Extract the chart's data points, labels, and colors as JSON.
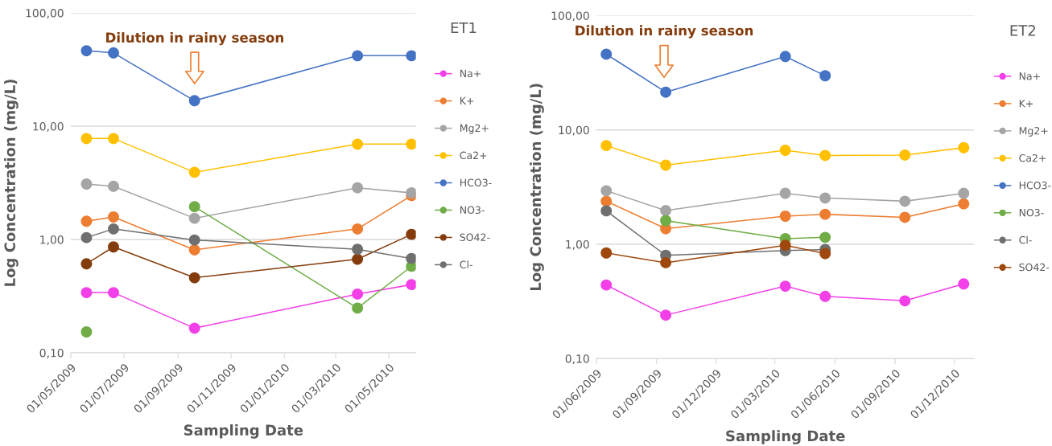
{
  "chart_data": [
    {
      "type": "line",
      "xlabel": "Sampling Date",
      "ylabel": "Log Concentration (mg/L)",
      "legend_title": "ET1",
      "legend": "right",
      "log": "y",
      "grid": "y",
      "marker": "circle",
      "line_style": "solid",
      "annotations": [
        "Dilution in rainy season"
      ],
      "x": [
        "2009-05-19",
        "2009-06-19",
        "2009-09-20",
        "2010-03-26",
        "2010-05-27"
      ],
      "xlim": [
        "2009-05-01",
        "2010-06-01"
      ],
      "xticks": [
        {
          "value": "2009-05-01",
          "label": "01/05/2009"
        },
        {
          "value": "2009-07-01",
          "label": "01/07/2009"
        },
        {
          "value": "2009-09-01",
          "label": "01/09/2009"
        },
        {
          "value": "2009-11-01",
          "label": "01/11/2009"
        },
        {
          "value": "2010-01-01",
          "label": "01/01/2010"
        },
        {
          "value": "2010-03-01",
          "label": "01/03/2010"
        },
        {
          "value": "2010-05-01",
          "label": "01/05/2010"
        }
      ],
      "ylim": [
        0.1,
        100
      ],
      "yticks": [
        {
          "value": 0.1,
          "label": "0,10"
        },
        {
          "value": 1,
          "label": "1,00"
        },
        {
          "value": 10,
          "label": "10,00"
        },
        {
          "value": 100,
          "label": "100,00"
        }
      ],
      "series": [
        {
          "name": "Na+",
          "color": "#f23fe8",
          "values": [
            0.34,
            0.34,
            0.165,
            0.33,
            0.4
          ]
        },
        {
          "name": "K+",
          "color": "#ed7d31",
          "values": [
            1.45,
            1.58,
            0.81,
            1.24,
            2.44
          ]
        },
        {
          "name": "Mg2+",
          "color": "#a5a5a5",
          "values": [
            3.09,
            2.95,
            1.54,
            2.86,
            2.58
          ]
        },
        {
          "name": "Ca2+",
          "color": "#ffc000",
          "values": [
            7.79,
            7.79,
            3.92,
            6.95,
            6.95
          ]
        },
        {
          "name": "HCO3-",
          "color": "#4472c4",
          "values": [
            46.4,
            44.4,
            16.8,
            41.9,
            41.9
          ]
        },
        {
          "name": "NO3-",
          "color": "#70ad47",
          "values": [
            0.153,
            null,
            1.95,
            0.248,
            0.58
          ]
        },
        {
          "name": "SO42-",
          "color": "#843c0c",
          "values": [
            0.61,
            0.86,
            0.46,
            0.67,
            1.11
          ]
        },
        {
          "name": "Cl-",
          "color": "#6f6f6f",
          "values": [
            1.04,
            1.24,
            0.99,
            0.82,
            0.68
          ]
        }
      ]
    },
    {
      "type": "line",
      "xlabel": "Sampling Date",
      "ylabel": "Log Concentration (mg/L)",
      "legend_title": "ET2",
      "legend": "right",
      "log": "y",
      "grid": "y",
      "marker": "circle",
      "line_style": "solid",
      "annotations": [
        "Dilution in rainy season"
      ],
      "x": [
        "2009-06-16",
        "2009-09-15",
        "2010-03-17",
        "2010-05-17",
        "2010-09-16",
        "2010-12-15"
      ],
      "xlim": [
        "2009-06-01",
        "2010-12-31"
      ],
      "xticks": [
        {
          "value": "2009-06-01",
          "label": "01/06/2009"
        },
        {
          "value": "2009-09-01",
          "label": "01/09/2009"
        },
        {
          "value": "2009-12-01",
          "label": "01/12/2009"
        },
        {
          "value": "2010-03-01",
          "label": "01/03/2010"
        },
        {
          "value": "2010-06-01",
          "label": "01/06/2010"
        },
        {
          "value": "2010-09-01",
          "label": "01/09/2010"
        },
        {
          "value": "2010-12-01",
          "label": "01/12/2010"
        }
      ],
      "ylim": [
        0.1,
        100
      ],
      "yticks": [
        {
          "value": 0.1,
          "label": "0,10"
        },
        {
          "value": 1,
          "label": "1,00"
        },
        {
          "value": 10,
          "label": "10,00"
        },
        {
          "value": 100,
          "label": "100,00"
        }
      ],
      "series": [
        {
          "name": "Na+",
          "color": "#f23fe8",
          "values": [
            0.44,
            0.24,
            0.43,
            0.35,
            0.32,
            0.45
          ]
        },
        {
          "name": "K+",
          "color": "#ed7d31",
          "values": [
            2.38,
            1.37,
            1.76,
            1.83,
            1.72,
            2.26
          ]
        },
        {
          "name": "Mg2+",
          "color": "#a5a5a5",
          "values": [
            2.94,
            1.97,
            2.79,
            2.54,
            2.38,
            2.79
          ]
        },
        {
          "name": "Ca2+",
          "color": "#ffc000",
          "values": [
            7.3,
            4.92,
            6.64,
            5.98,
            6.03,
            7.0
          ]
        },
        {
          "name": "HCO3-",
          "color": "#4472c4",
          "values": [
            46,
            21.4,
            43.9,
            29.8,
            null,
            null
          ]
        },
        {
          "name": "NO3-",
          "color": "#70ad47",
          "values": [
            null,
            1.61,
            1.12,
            1.15,
            null,
            null
          ]
        },
        {
          "name": "Cl-",
          "color": "#6f6f6f",
          "values": [
            1.96,
            0.8,
            0.88,
            0.9,
            null,
            null
          ]
        },
        {
          "name": "SO42-",
          "color": "#9e480e",
          "values": [
            0.84,
            0.69,
            0.98,
            0.83,
            null,
            null
          ]
        }
      ]
    }
  ]
}
